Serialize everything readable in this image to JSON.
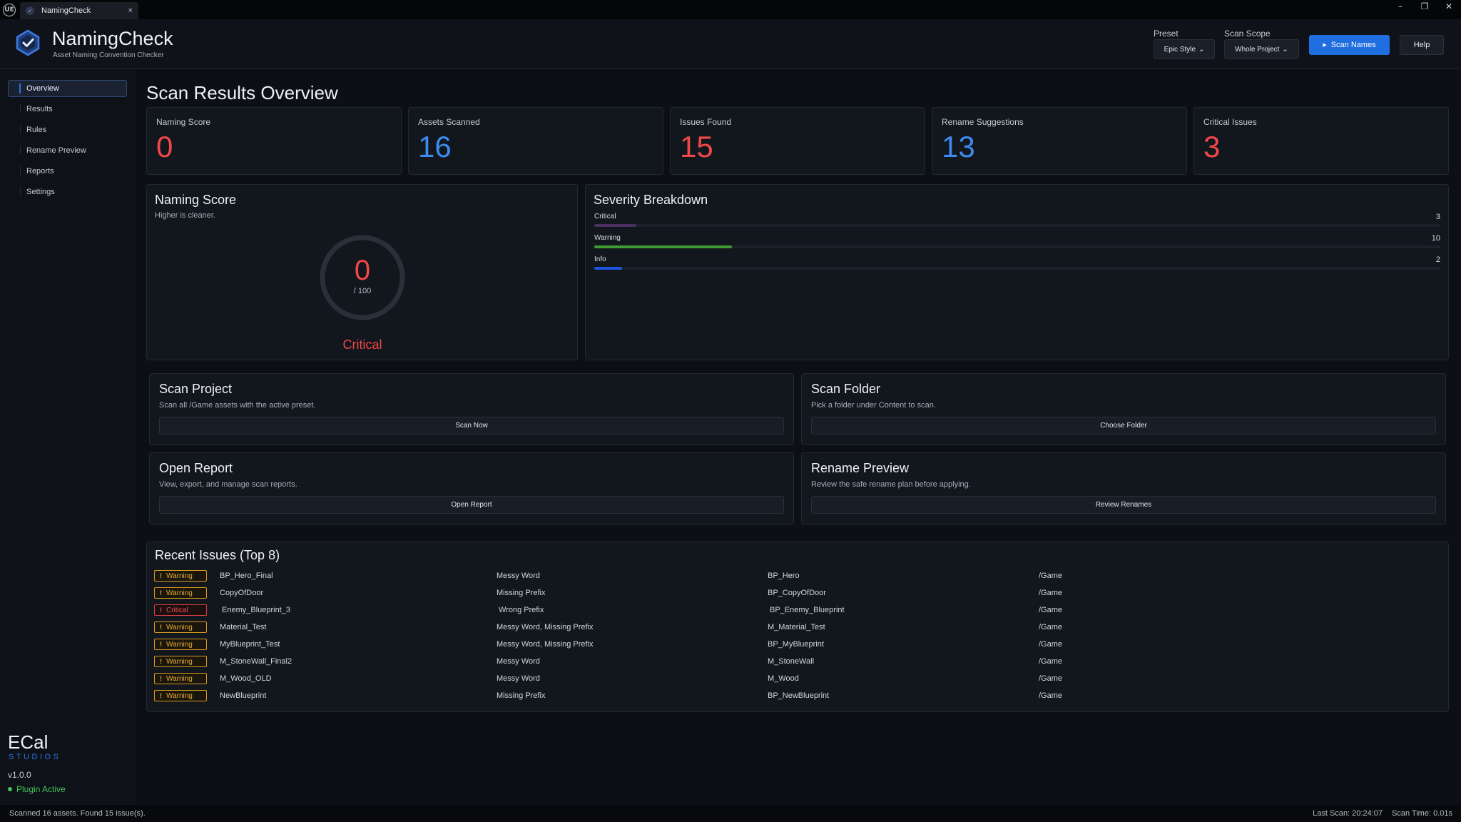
{
  "titlebar": {
    "logo": "UE",
    "tab_label": "NamingCheck",
    "close": "×",
    "minimize": "–",
    "restore": "❐",
    "close_window": "✕"
  },
  "header": {
    "title": "NamingCheck",
    "subtitle": "Asset Naming Convention Checker",
    "preset_label": "Preset",
    "preset_value": "Epic Style",
    "scope_label": "Scan Scope",
    "scope_value": "Whole Project",
    "scan_button": "Scan Names",
    "help_button": "Help"
  },
  "sidebar": {
    "items": [
      {
        "label": "Overview"
      },
      {
        "label": "Results"
      },
      {
        "label": "Rules"
      },
      {
        "label": "Rename Preview"
      },
      {
        "label": "Reports"
      },
      {
        "label": "Settings"
      }
    ],
    "brand": "ECal",
    "brand_sub": "STUDIOS",
    "version": "v1.0.0",
    "plugin_status": "Plugin Active"
  },
  "main": {
    "title": "Scan Results Overview",
    "stats": [
      {
        "label": "Naming Score",
        "value": "0",
        "color": "#f04848"
      },
      {
        "label": "Assets Scanned",
        "value": "16",
        "color": "#3c8bee"
      },
      {
        "label": "Issues Found",
        "value": "15",
        "color": "#f04848"
      },
      {
        "label": "Rename Suggestions",
        "value": "13",
        "color": "#3c8bee"
      },
      {
        "label": "Critical Issues",
        "value": "3",
        "color": "#f04848"
      }
    ],
    "score_panel": {
      "title": "Naming Score",
      "subtitle": "Higher is cleaner.",
      "value": "0",
      "max": "/ 100",
      "status": "Critical",
      "fraction": 0
    },
    "severity_panel": {
      "title": "Severity Breakdown",
      "rows": [
        {
          "name": "Critical",
          "count": "3",
          "fraction": 0.05,
          "color": "#4a2f5e"
        },
        {
          "name": "Warning",
          "count": "10",
          "fraction": 0.163,
          "color": "#3f9a2f"
        },
        {
          "name": "Info",
          "count": "2",
          "fraction": 0.033,
          "color": "#1f56e0"
        }
      ]
    },
    "actions": [
      {
        "title": "Scan Project",
        "subtitle": "Scan all /Game assets with the active preset.",
        "button": "Scan Now"
      },
      {
        "title": "Scan Folder",
        "subtitle": "Pick a folder under Content to scan.",
        "button": "Choose Folder"
      },
      {
        "title": "Open Report",
        "subtitle": "View, export, and manage scan reports.",
        "button": "Open Report"
      },
      {
        "title": "Rename Preview",
        "subtitle": "Review the safe rename plan before applying.",
        "button": "Review Renames"
      }
    ],
    "recent_issues": {
      "title": "Recent Issues (Top 8)",
      "rows": [
        {
          "severity": "Warning",
          "asset": "BP_Hero_Final",
          "rule": "Messy Word",
          "suggestion": "BP_Hero",
          "path": "/Game"
        },
        {
          "severity": "Warning",
          "asset": "CopyOfDoor",
          "rule": "Missing Prefix",
          "suggestion": "BP_CopyOfDoor",
          "path": "/Game"
        },
        {
          "severity": "Critical",
          "asset": "Enemy_Blueprint_3",
          "rule": "Wrong Prefix",
          "suggestion": "BP_Enemy_Blueprint",
          "path": "/Game"
        },
        {
          "severity": "Warning",
          "asset": "Material_Test",
          "rule": "Messy Word, Missing Prefix",
          "suggestion": "M_Material_Test",
          "path": "/Game"
        },
        {
          "severity": "Warning",
          "asset": "MyBlueprint_Test",
          "rule": "Messy Word, Missing Prefix",
          "suggestion": "BP_MyBlueprint",
          "path": "/Game"
        },
        {
          "severity": "Warning",
          "asset": "M_StoneWall_Final2",
          "rule": "Messy Word",
          "suggestion": "M_StoneWall",
          "path": "/Game"
        },
        {
          "severity": "Warning",
          "asset": "M_Wood_OLD",
          "rule": "Messy Word",
          "suggestion": "M_Wood",
          "path": "/Game"
        },
        {
          "severity": "Warning",
          "asset": "NewBlueprint",
          "rule": "Missing Prefix",
          "suggestion": "BP_NewBlueprint",
          "path": "/Game"
        }
      ]
    }
  },
  "statusbar": {
    "message": "Scanned 16 assets. Found 15 issue(s).",
    "last_scan": "Last Scan: 20:24:07",
    "scan_time": "Scan Time: 0.01s"
  }
}
